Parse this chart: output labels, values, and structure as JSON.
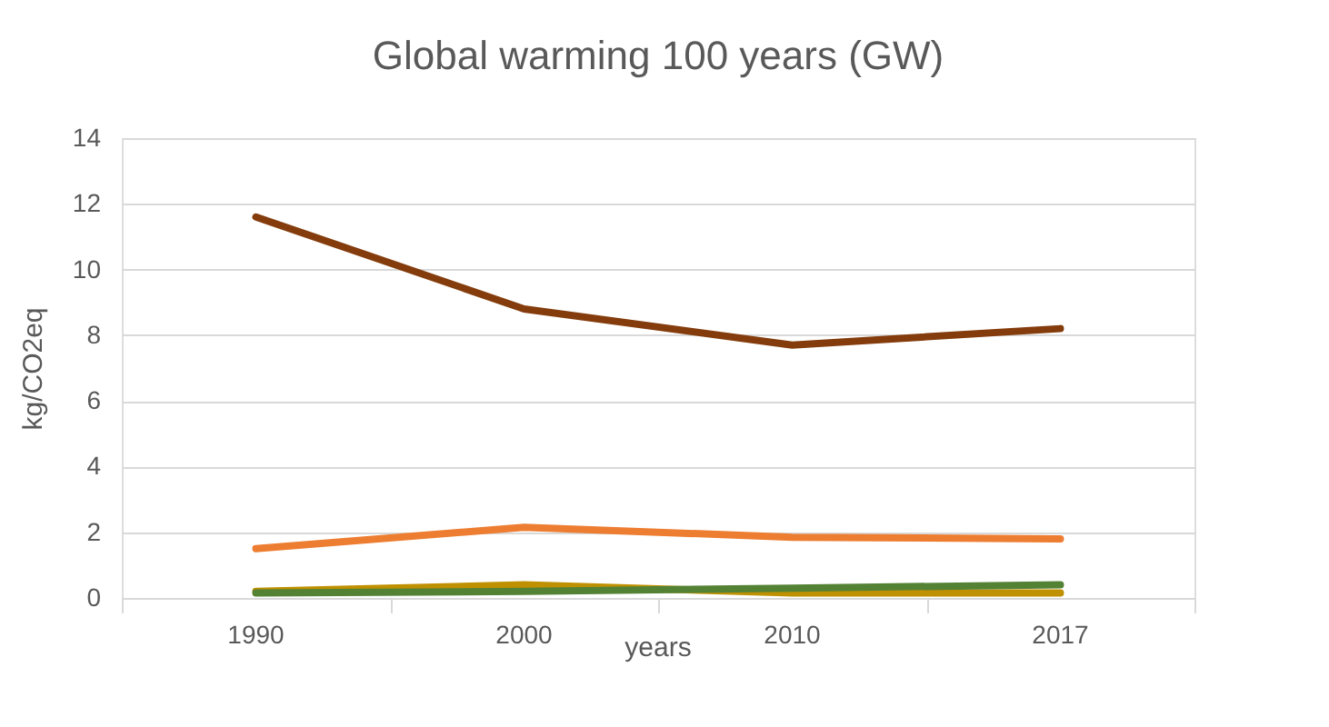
{
  "chart_data": {
    "type": "line",
    "title": "Global warming 100 years (GW)",
    "xlabel": "years",
    "ylabel": "kg/CO2eq",
    "categories": [
      "1990",
      "2000",
      "2010",
      "2017"
    ],
    "series": [
      {
        "color": "#843c0c",
        "values": [
          11.6,
          8.8,
          7.7,
          8.2
        ]
      },
      {
        "color": "#ed7d31",
        "values": [
          1.5,
          2.15,
          1.85,
          1.8
        ]
      },
      {
        "color": "#bf9000",
        "values": [
          0.2,
          0.4,
          0.15,
          0.15
        ]
      },
      {
        "color": "#548235",
        "values": [
          0.15,
          0.2,
          0.3,
          0.4
        ]
      }
    ],
    "ylim": [
      0,
      14
    ],
    "yticks": [
      0,
      2,
      4,
      6,
      8,
      10,
      12,
      14
    ],
    "grid": "y",
    "marker": "none",
    "line_style": "solid"
  }
}
